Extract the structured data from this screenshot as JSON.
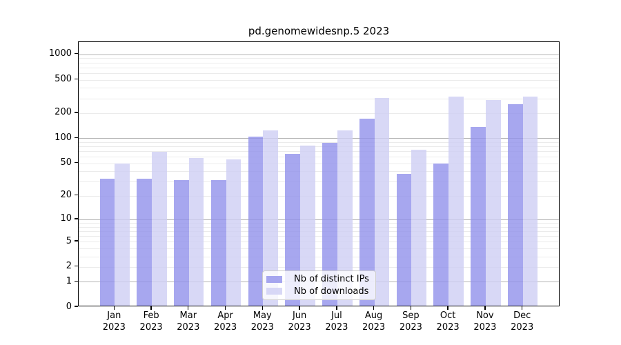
{
  "title": "pd.genomewidesnp.5 2023",
  "colors": {
    "distinct_ips_bar": "rgba(145,145,235,0.8)",
    "downloads_bar": "rgba(206,206,244,0.8)",
    "distinct_ips_apparent_hex": "#a7a7ef",
    "downloads_apparent_hex": "#d8d8f6",
    "grid_major": "#b3b3b3",
    "grid_minor": "#ebebeb",
    "legend_border": "#cccccc",
    "axis": "#000000"
  },
  "legend": {
    "items": [
      {
        "label": "Nb of distinct IPs",
        "series": "ips"
      },
      {
        "label": "Nb of downloads",
        "series": "downloads"
      }
    ]
  },
  "chart_data": {
    "type": "bar",
    "title": "pd.genomewidesnp.5 2023",
    "categories": [
      "Jan",
      "Feb",
      "Mar",
      "Apr",
      "May",
      "Jun",
      "Jul",
      "Aug",
      "Sep",
      "Oct",
      "Nov",
      "Dec"
    ],
    "year": "2023",
    "series": [
      {
        "name": "Nb of distinct IPs",
        "values": [
          31,
          31,
          30,
          30,
          100,
          62,
          85,
          164,
          36,
          48,
          132,
          245
        ]
      },
      {
        "name": "Nb of downloads",
        "values": [
          48,
          66,
          56,
          54,
          120,
          78,
          119,
          290,
          70,
          305,
          275,
          305
        ]
      }
    ],
    "y_scale": "log10(1+y)",
    "y_ticks": [
      0,
      1,
      2,
      5,
      10,
      20,
      50,
      100,
      200,
      500,
      1000
    ],
    "ylim": [
      0,
      1400
    ],
    "grid": true,
    "legend_position": "lower center"
  }
}
